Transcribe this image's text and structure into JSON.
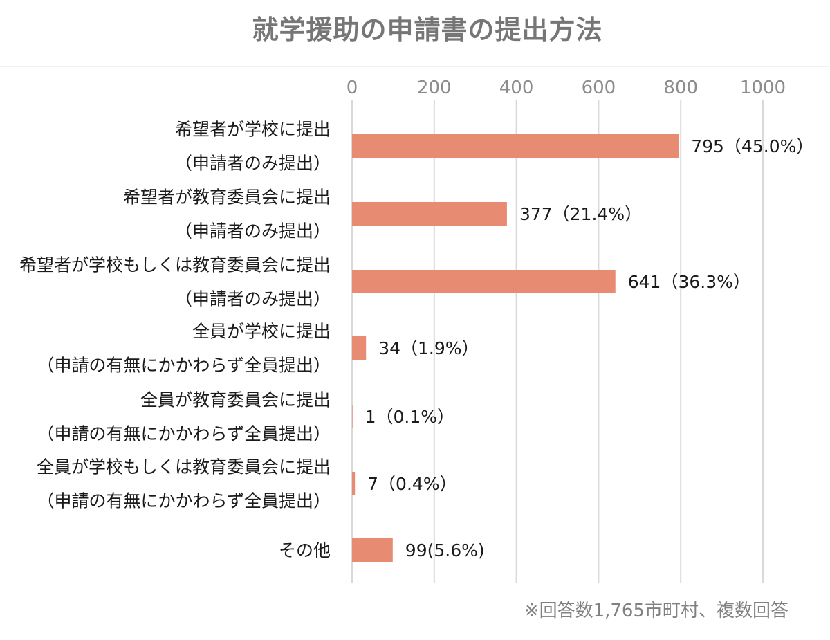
{
  "chart_data": {
    "type": "bar",
    "orientation": "horizontal",
    "title": "就学援助の申請書の提出方法",
    "xlim": [
      0,
      1000
    ],
    "xticks": [
      0,
      200,
      400,
      600,
      800,
      1000
    ],
    "xtick_labels": [
      "0",
      "200",
      "400",
      "600",
      "800",
      "1000"
    ],
    "axis_position": "top",
    "grid": true,
    "bar_color": "#e88b73",
    "categories": [
      [
        "希望者が学校に提出",
        "（申請者のみ提出）"
      ],
      [
        "希望者が教育委員会に提出",
        "（申請者のみ提出）"
      ],
      [
        "希望者が学校もしくは教育委員会に提出",
        "（申請者のみ提出）"
      ],
      [
        "全員が学校に提出",
        "（申請の有無にかかわらず全員提出）"
      ],
      [
        "全員が教育委員会に提出",
        "（申請の有無にかかわらず全員提出）"
      ],
      [
        "全員が学校もしくは教育委員会に提出",
        "（申請の有無にかかわらず全員提出）"
      ],
      [
        "その他"
      ]
    ],
    "values": [
      795,
      377,
      641,
      34,
      1,
      7,
      99
    ],
    "data_labels": [
      "795（45.0%）",
      "377（21.4%）",
      "641（36.3%）",
      "34（1.9%）",
      "1（0.1%）",
      "7（0.4%）",
      "99(5.6%)"
    ]
  },
  "footnote": "※回答数1,765市町村、複数回答"
}
